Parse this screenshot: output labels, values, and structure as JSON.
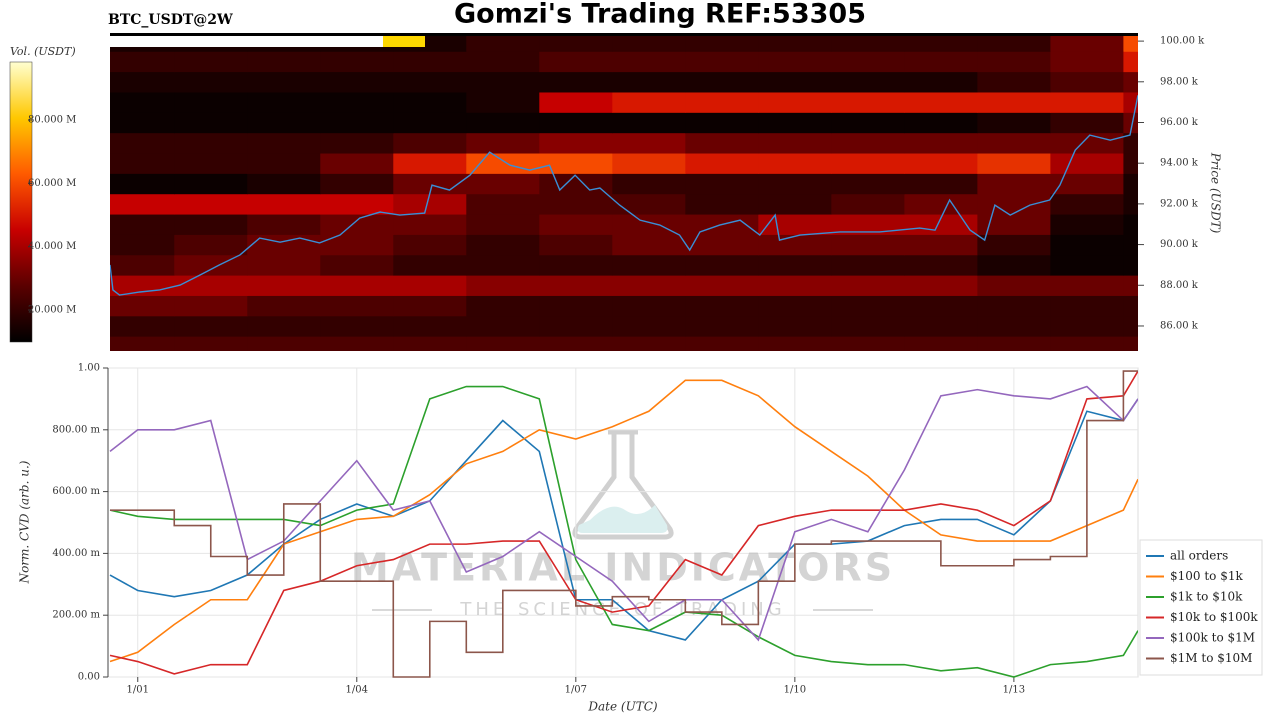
{
  "title": "Gomzi's Trading REF:53305",
  "chart_data": [
    {
      "type": "heatmap",
      "title": "BTC_USDT@2W",
      "ylabel": "Price (USDT)",
      "colorbar_label": "Vol. (USDT)",
      "xlim": [
        0.62,
        14.7
      ],
      "ylim": [
        84770,
        100300
      ],
      "yticks": [
        {
          "value": 86000,
          "label": "86.00 k"
        },
        {
          "value": 88000,
          "label": "88.00 k"
        },
        {
          "value": 90000,
          "label": "90.00 k"
        },
        {
          "value": 92000,
          "label": "92.00 k"
        },
        {
          "value": 94000,
          "label": "94.00 k"
        },
        {
          "value": 96000,
          "label": "96.00 k"
        },
        {
          "value": 98000,
          "label": "98.00 k"
        },
        {
          "value": 100000,
          "label": "100.00 k"
        }
      ],
      "zlim": [
        9900000,
        98300000
      ],
      "zticks": [
        {
          "value": 20000000,
          "label": "20.000 M"
        },
        {
          "value": 40000000,
          "label": "40.000 M"
        },
        {
          "value": 60000000,
          "label": "60.000 M"
        },
        {
          "value": 80000000,
          "label": "80.000 M"
        }
      ],
      "colormap": [
        "#000000",
        "#5a0000",
        "#c80000",
        "#ff5a00",
        "#ffc800",
        "#ffffd0"
      ],
      "x": [
        1,
        2,
        3,
        4,
        5,
        6,
        7,
        8,
        9,
        10,
        11,
        12,
        13,
        14,
        15
      ],
      "y": [
        85000,
        86000,
        87000,
        88000,
        89000,
        90000,
        91000,
        92000,
        93000,
        94000,
        95000,
        96000,
        97000,
        98000,
        99000,
        100000
      ],
      "z": [
        [
          25000000.0,
          25000000.0,
          25000000.0,
          25000000.0,
          25000000.0,
          25000000.0,
          25000000.0,
          25000000.0,
          25000000.0,
          25000000.0,
          25000000.0,
          25000000.0,
          25000000.0,
          25000000.0,
          25000000.0
        ],
        [
          20000000.0,
          20000000.0,
          20000000.0,
          20000000.0,
          20000000.0,
          20000000.0,
          20000000.0,
          20000000.0,
          20000000.0,
          20000000.0,
          20000000.0,
          20000000.0,
          20000000.0,
          20000000.0,
          20000000.0
        ],
        [
          30000000.0,
          30000000.0,
          25000000.0,
          25000000.0,
          25000000.0,
          20000000.0,
          20000000.0,
          20000000.0,
          20000000.0,
          20000000.0,
          20000000.0,
          20000000.0,
          20000000.0,
          20000000.0,
          20000000.0
        ],
        [
          40000000.0,
          40000000.0,
          40000000.0,
          40000000.0,
          40000000.0,
          35000000.0,
          35000000.0,
          35000000.0,
          35000000.0,
          35000000.0,
          35000000.0,
          35000000.0,
          30000000.0,
          30000000.0,
          30000000.0
        ],
        [
          25000000.0,
          30000000.0,
          30000000.0,
          25000000.0,
          20000000.0,
          20000000.0,
          20000000.0,
          20000000.0,
          20000000.0,
          20000000.0,
          20000000.0,
          20000000.0,
          15000000.0,
          12000000.0,
          12000000.0
        ],
        [
          20000000.0,
          25000000.0,
          30000000.0,
          30000000.0,
          25000000.0,
          20000000.0,
          25000000.0,
          30000000.0,
          30000000.0,
          30000000.0,
          30000000.0,
          30000000.0,
          20000000.0,
          12000000.0,
          12000000.0
        ],
        [
          20000000.0,
          20000000.0,
          25000000.0,
          30000000.0,
          30000000.0,
          25000000.0,
          30000000.0,
          30000000.0,
          30000000.0,
          40000000.0,
          40000000.0,
          40000000.0,
          30000000.0,
          15000000.0,
          12000000.0
        ],
        [
          45000000.0,
          45000000.0,
          45000000.0,
          45000000.0,
          40000000.0,
          25000000.0,
          25000000.0,
          25000000.0,
          20000000.0,
          20000000.0,
          25000000.0,
          30000000.0,
          30000000.0,
          20000000.0,
          15000000.0
        ],
        [
          12000000.0,
          12000000.0,
          15000000.0,
          20000000.0,
          30000000.0,
          30000000.0,
          25000000.0,
          20000000.0,
          20000000.0,
          20000000.0,
          20000000.0,
          20000000.0,
          30000000.0,
          30000000.0,
          15000000.0
        ],
        [
          20000000.0,
          20000000.0,
          20000000.0,
          30000000.0,
          50000000.0,
          60000000.0,
          60000000.0,
          55000000.0,
          50000000.0,
          50000000.0,
          50000000.0,
          50000000.0,
          55000000.0,
          40000000.0,
          20000000.0
        ],
        [
          20000000.0,
          20000000.0,
          20000000.0,
          20000000.0,
          25000000.0,
          30000000.0,
          35000000.0,
          35000000.0,
          30000000.0,
          30000000.0,
          30000000.0,
          30000000.0,
          30000000.0,
          30000000.0,
          20000000.0
        ],
        [
          12000000.0,
          12000000.0,
          12000000.0,
          12000000.0,
          12000000.0,
          12000000.0,
          12000000.0,
          12000000.0,
          12000000.0,
          12000000.0,
          12000000.0,
          12000000.0,
          15000000.0,
          20000000.0,
          30000000.0
        ],
        [
          12000000.0,
          12000000.0,
          12000000.0,
          12000000.0,
          12000000.0,
          15000000.0,
          45000000.0,
          50000000.0,
          50000000.0,
          50000000.0,
          50000000.0,
          50000000.0,
          50000000.0,
          50000000.0,
          40000000.0
        ],
        [
          15000000.0,
          15000000.0,
          15000000.0,
          15000000.0,
          15000000.0,
          15000000.0,
          15000000.0,
          15000000.0,
          15000000.0,
          15000000.0,
          15000000.0,
          15000000.0,
          20000000.0,
          25000000.0,
          30000000.0
        ],
        [
          20000000.0,
          20000000.0,
          20000000.0,
          20000000.0,
          20000000.0,
          20000000.0,
          25000000.0,
          25000000.0,
          25000000.0,
          25000000.0,
          25000000.0,
          25000000.0,
          25000000.0,
          30000000.0,
          50000000.0
        ],
        [
          15000000.0,
          15000000.0,
          15000000.0,
          15000000.0,
          15000000.0,
          20000000.0,
          20000000.0,
          20000000.0,
          20000000.0,
          20000000.0,
          20000000.0,
          20000000.0,
          20000000.0,
          30000000.0,
          60000000.0
        ]
      ],
      "series": [
        {
          "color": "#3a8fd6",
          "x": [
            0.62,
            0.66,
            0.75,
            1.03,
            1.3,
            1.58,
            1.85,
            2.12,
            2.4,
            2.67,
            2.95,
            3.22,
            3.49,
            3.77,
            4.04,
            4.32,
            4.59,
            4.93,
            5.03,
            5.27,
            5.55,
            5.82,
            6.1,
            6.37,
            6.64,
            6.78,
            6.99,
            7.19,
            7.33,
            7.6,
            7.88,
            8.15,
            8.42,
            8.56,
            8.7,
            8.97,
            9.25,
            9.52,
            9.73,
            9.79,
            10.07,
            10.62,
            11.16,
            11.71,
            11.92,
            12.12,
            12.4,
            12.6,
            12.74,
            12.95,
            13.22,
            13.49,
            13.63,
            13.84,
            14.04,
            14.32,
            14.59,
            14.7
          ],
          "values": [
            89000,
            87770,
            87520,
            87670,
            87770,
            88010,
            88500,
            89000,
            89490,
            90320,
            90120,
            90320,
            90080,
            90470,
            91300,
            91600,
            91450,
            91550,
            92920,
            92680,
            93410,
            94540,
            93900,
            93660,
            93900,
            92680,
            93410,
            92680,
            92780,
            91940,
            91200,
            90960,
            90470,
            89730,
            90620,
            90960,
            91200,
            90470,
            91450,
            90220,
            90470,
            90620,
            90620,
            90810,
            90710,
            92190,
            90710,
            90220,
            91940,
            91450,
            91940,
            92190,
            92920,
            94640,
            95380,
            95130,
            95380,
            97340
          ]
        }
      ]
    },
    {
      "type": "line",
      "xlabel": "Date (UTC)",
      "ylabel": "Norm. CVD (arb. u.)",
      "watermark": [
        "MATERIAL INDICATORS",
        "THE SCIENCE OF TRADING"
      ],
      "grid": true,
      "legend": "right",
      "xlim": [
        0.62,
        14.7
      ],
      "xticks": [
        {
          "value": 1,
          "label": "1/01"
        },
        {
          "value": 4,
          "label": "1/04"
        },
        {
          "value": 7,
          "label": "1/07"
        },
        {
          "value": 10,
          "label": "1/10"
        },
        {
          "value": 13,
          "label": "1/13"
        }
      ],
      "ylim": [
        0,
        1
      ],
      "yticks": [
        {
          "value": 0,
          "label": "0.00"
        },
        {
          "value": 0.2,
          "label": "200.00 m"
        },
        {
          "value": 0.4,
          "label": "400.00 m"
        },
        {
          "value": 0.6,
          "label": "600.00 m"
        },
        {
          "value": 0.8,
          "label": "800.00 m"
        },
        {
          "value": 1,
          "label": "1.00"
        }
      ],
      "x": [
        0.62,
        1,
        1.5,
        2,
        2.5,
        3,
        3.5,
        4,
        4.5,
        5,
        5.5,
        6,
        6.5,
        7,
        7.5,
        8,
        8.5,
        9,
        9.5,
        10,
        10.5,
        11,
        11.5,
        12,
        12.5,
        13,
        13.5,
        14,
        14.5,
        14.7
      ],
      "series": [
        {
          "name": "all orders",
          "color": "#1f77b4",
          "values": [
            0.33,
            0.28,
            0.26,
            0.28,
            0.33,
            0.43,
            0.51,
            0.56,
            0.52,
            0.57,
            0.7,
            0.83,
            0.73,
            0.25,
            0.25,
            0.15,
            0.12,
            0.25,
            0.31,
            0.43,
            0.43,
            0.44,
            0.49,
            0.51,
            0.51,
            0.46,
            0.57,
            0.86,
            0.83,
            0.9
          ]
        },
        {
          "name": "$100 to $1k",
          "color": "#ff7f0e",
          "values": [
            0.05,
            0.08,
            0.17,
            0.25,
            0.25,
            0.43,
            0.47,
            0.51,
            0.52,
            0.59,
            0.69,
            0.73,
            0.8,
            0.77,
            0.81,
            0.86,
            0.96,
            0.96,
            0.91,
            0.81,
            0.73,
            0.65,
            0.54,
            0.46,
            0.44,
            0.44,
            0.44,
            0.49,
            0.54,
            0.64
          ]
        },
        {
          "name": "$1k to $10k",
          "color": "#2ca02c",
          "values": [
            0.54,
            0.52,
            0.51,
            0.51,
            0.51,
            0.51,
            0.49,
            0.54,
            0.56,
            0.9,
            0.94,
            0.94,
            0.9,
            0.38,
            0.17,
            0.15,
            0.21,
            0.2,
            0.13,
            0.07,
            0.05,
            0.04,
            0.04,
            0.02,
            0.03,
            0,
            0.04,
            0.05,
            0.07,
            0.15
          ]
        },
        {
          "name": "$10k to $100k",
          "color": "#d62728",
          "values": [
            0.07,
            0.05,
            0.01,
            0.04,
            0.04,
            0.28,
            0.31,
            0.36,
            0.38,
            0.43,
            0.43,
            0.44,
            0.44,
            0.25,
            0.21,
            0.23,
            0.38,
            0.33,
            0.49,
            0.52,
            0.54,
            0.54,
            0.54,
            0.56,
            0.54,
            0.49,
            0.57,
            0.9,
            0.91,
            0.99
          ]
        },
        {
          "name": "$100k to $1M",
          "color": "#9467bd",
          "values": [
            0.73,
            0.8,
            0.8,
            0.83,
            0.38,
            0.44,
            0.57,
            0.7,
            0.54,
            0.57,
            0.34,
            0.39,
            0.47,
            0.39,
            0.31,
            0.18,
            0.25,
            0.25,
            0.12,
            0.47,
            0.51,
            0.47,
            0.67,
            0.91,
            0.93,
            0.91,
            0.9,
            0.94,
            0.83,
            0.9
          ]
        },
        {
          "name": "$1M to $10M",
          "color": "#8c564b",
          "shape": "hv",
          "values": [
            0.54,
            0.54,
            0.49,
            0.39,
            0.33,
            0.56,
            0.31,
            0.31,
            0,
            0.18,
            0.08,
            0.28,
            0.28,
            0.23,
            0.26,
            0.25,
            0.21,
            0.17,
            0.31,
            0.43,
            0.44,
            0.44,
            0.44,
            0.36,
            0.36,
            0.38,
            0.39,
            0.83,
            0.99,
            0.99
          ]
        }
      ]
    }
  ]
}
